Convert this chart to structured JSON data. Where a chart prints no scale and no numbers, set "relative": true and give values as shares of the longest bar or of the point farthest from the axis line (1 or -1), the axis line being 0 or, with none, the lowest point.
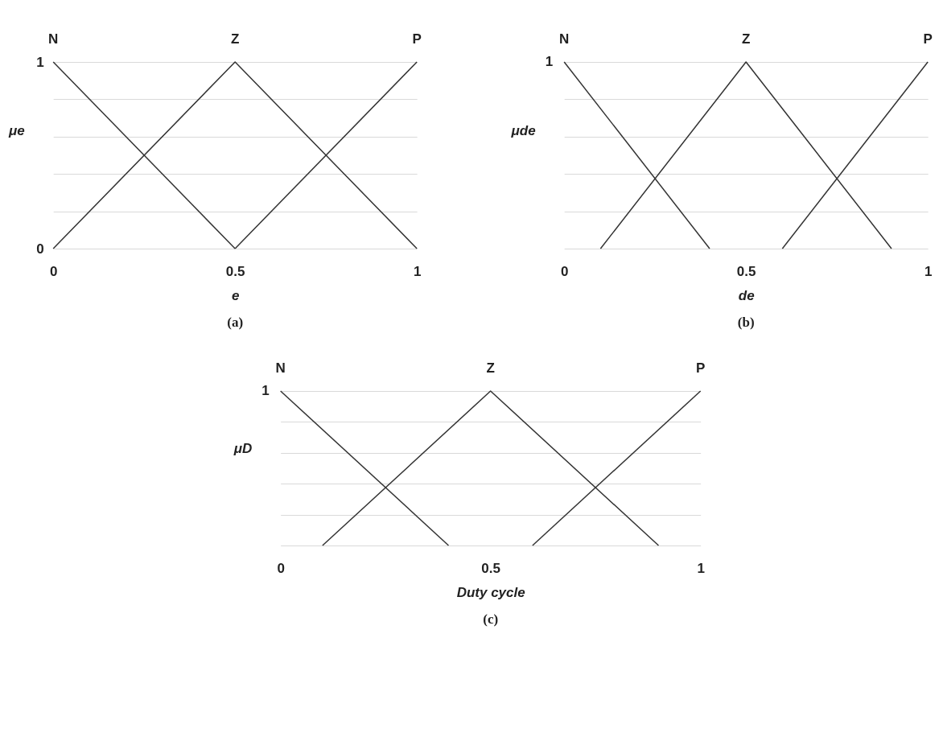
{
  "chart_data": [
    {
      "type": "line",
      "xlabel": "e",
      "ylabel": "μe",
      "annotations": [
        "(a)"
      ],
      "xlim": [
        0,
        1
      ],
      "ylim": [
        0,
        1
      ],
      "xticks": [
        0,
        0.5,
        1
      ],
      "yticks": [
        0,
        {
          "value": 0.2,
          "label": null
        },
        {
          "value": 0.4,
          "label": null
        },
        {
          "value": 0.6,
          "label": null
        },
        {
          "value": 0.8,
          "label": null
        },
        1
      ],
      "grid": "y",
      "legend": false,
      "marker": "none",
      "line_style": "solid",
      "series": [
        {
          "name": "N",
          "color": "#333333",
          "x": [
            0,
            0.5
          ],
          "values": [
            1,
            0
          ]
        },
        {
          "name": "Z",
          "color": "#333333",
          "x": [
            0,
            0.5,
            1
          ],
          "values": [
            0,
            1,
            0
          ]
        },
        {
          "name": "P",
          "color": "#333333",
          "x": [
            0.5,
            1
          ],
          "values": [
            0,
            1
          ]
        }
      ]
    },
    {
      "type": "line",
      "xlabel": "de",
      "ylabel": "μde",
      "annotations": [
        "1",
        "(b)"
      ],
      "relative": true,
      "xlim": [
        0,
        1
      ],
      "xticks": [
        0,
        0.5,
        1
      ],
      "grid": "y",
      "legend": false,
      "marker": "none",
      "line_style": "solid",
      "series": [
        {
          "name": "N",
          "color": "#333333",
          "x": [
            0,
            0.4
          ],
          "values": [
            1,
            0
          ]
        },
        {
          "name": "Z",
          "color": "#333333",
          "x": [
            0.1,
            0.5,
            0.9
          ],
          "values": [
            0,
            1,
            0
          ]
        },
        {
          "name": "P",
          "color": "#333333",
          "x": [
            0.6,
            1
          ],
          "values": [
            0,
            1
          ]
        }
      ]
    },
    {
      "type": "line",
      "xlabel": "Duty cycle",
      "ylabel": "μD",
      "annotations": [
        "1",
        "(c)"
      ],
      "relative": true,
      "xlim": [
        0,
        1
      ],
      "xticks": [
        0,
        0.5,
        1
      ],
      "grid": "y",
      "legend": false,
      "marker": "none",
      "line_style": "solid",
      "series": [
        {
          "name": "N",
          "color": "#333333",
          "x": [
            0,
            0.4
          ],
          "values": [
            1,
            0
          ]
        },
        {
          "name": "Z",
          "color": "#333333",
          "x": [
            0.1,
            0.5,
            0.9
          ],
          "values": [
            0,
            1,
            0
          ]
        },
        {
          "name": "P",
          "color": "#333333",
          "x": [
            0.6,
            1
          ],
          "values": [
            0,
            1
          ]
        }
      ]
    }
  ]
}
